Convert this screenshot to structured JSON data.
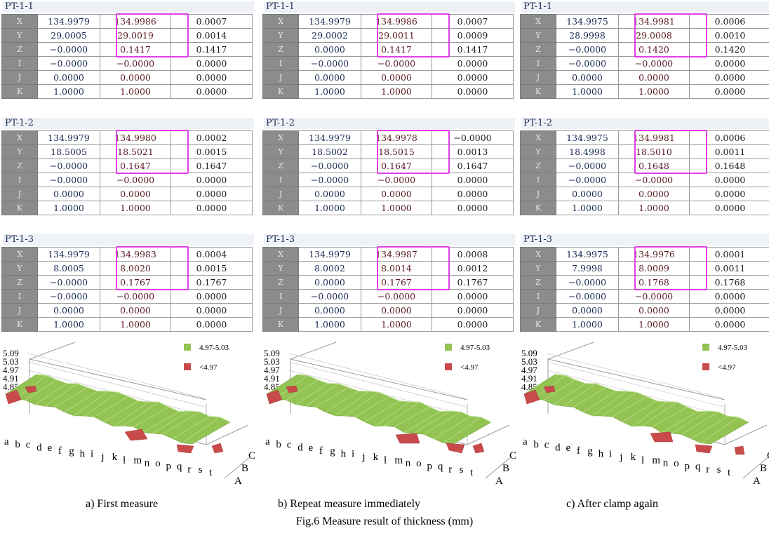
{
  "panels": [
    {
      "caption": "a) First measure",
      "blocks": [
        {
          "title": "PT-1-1",
          "rows": [
            {
              "axis": "X",
              "nominal": "134.9979",
              "measured": "134.9986",
              "deviation": "0.0007"
            },
            {
              "axis": "Y",
              "nominal": "29.0005",
              "measured": "29.0019",
              "deviation": "0.0014"
            },
            {
              "axis": "Z",
              "nominal": "−0.0000",
              "measured": "0.1417",
              "deviation": "0.1417"
            },
            {
              "axis": "I",
              "nominal": "−0.0000",
              "measured": "−0.0000",
              "deviation": "0.0000"
            },
            {
              "axis": "J",
              "nominal": "0.0000",
              "measured": "0.0000",
              "deviation": "0.0000"
            },
            {
              "axis": "K",
              "nominal": "1.0000",
              "measured": "1.0000",
              "deviation": "0.0000"
            }
          ]
        },
        {
          "title": "PT-1-2",
          "rows": [
            {
              "axis": "X",
              "nominal": "134.9979",
              "measured": "134.9980",
              "deviation": "0.0002"
            },
            {
              "axis": "Y",
              "nominal": "18.5005",
              "measured": "18.5021",
              "deviation": "0.0015"
            },
            {
              "axis": "Z",
              "nominal": "−0.0000",
              "measured": "0.1647",
              "deviation": "0.1647"
            },
            {
              "axis": "I",
              "nominal": "−0.0000",
              "measured": "−0.0000",
              "deviation": "0.0000"
            },
            {
              "axis": "J",
              "nominal": "0.0000",
              "measured": "0.0000",
              "deviation": "0.0000"
            },
            {
              "axis": "K",
              "nominal": "1.0000",
              "measured": "1.0000",
              "deviation": "0.0000"
            }
          ]
        },
        {
          "title": "PT-1-3",
          "rows": [
            {
              "axis": "X",
              "nominal": "134.9979",
              "measured": "134.9983",
              "deviation": "0.0004"
            },
            {
              "axis": "Y",
              "nominal": "8.0005",
              "measured": "8.0020",
              "deviation": "0.0015"
            },
            {
              "axis": "Z",
              "nominal": "−0.0000",
              "measured": "0.1767",
              "deviation": "0.1767"
            },
            {
              "axis": "I",
              "nominal": "−0.0000",
              "measured": "−0.0000",
              "deviation": "0.0000"
            },
            {
              "axis": "J",
              "nominal": "0.0000",
              "measured": "0.0000",
              "deviation": "0.0000"
            },
            {
              "axis": "K",
              "nominal": "1.0000",
              "measured": "1.0000",
              "deviation": "0.0000"
            }
          ]
        }
      ]
    },
    {
      "caption": "b) Repeat measure immediately",
      "blocks": [
        {
          "title": "PT-1-1",
          "rows": [
            {
              "axis": "X",
              "nominal": "134.9979",
              "measured": "134.9986",
              "deviation": "0.0007"
            },
            {
              "axis": "Y",
              "nominal": "29.0002",
              "measured": "29.0011",
              "deviation": "0.0009"
            },
            {
              "axis": "Z",
              "nominal": "0.0000",
              "measured": "0.1417",
              "deviation": "0.1417"
            },
            {
              "axis": "I",
              "nominal": "−0.0000",
              "measured": "−0.0000",
              "deviation": "0.0000"
            },
            {
              "axis": "J",
              "nominal": "0.0000",
              "measured": "0.0000",
              "deviation": "0.0000"
            },
            {
              "axis": "K",
              "nominal": "1.0000",
              "measured": "1.0000",
              "deviation": "0.0000"
            }
          ]
        },
        {
          "title": "PT-1-2",
          "rows": [
            {
              "axis": "X",
              "nominal": "134.9979",
              "measured": "134.9978",
              "deviation": "−0.0000"
            },
            {
              "axis": "Y",
              "nominal": "18.5002",
              "measured": "18.5015",
              "deviation": "0.0013"
            },
            {
              "axis": "Z",
              "nominal": "−0.0000",
              "measured": "0.1647",
              "deviation": "0.1647"
            },
            {
              "axis": "I",
              "nominal": "−0.0000",
              "measured": "−0.0000",
              "deviation": "0.0000"
            },
            {
              "axis": "J",
              "nominal": "0.0000",
              "measured": "0.0000",
              "deviation": "0.0000"
            },
            {
              "axis": "K",
              "nominal": "1.0000",
              "measured": "1.0000",
              "deviation": "0.0000"
            }
          ]
        },
        {
          "title": "PT-1-3",
          "rows": [
            {
              "axis": "X",
              "nominal": "134.9979",
              "measured": "134.9987",
              "deviation": "0.0008"
            },
            {
              "axis": "Y",
              "nominal": "8.0002",
              "measured": "8.0014",
              "deviation": "0.0012"
            },
            {
              "axis": "Z",
              "nominal": "0.0000",
              "measured": "0.1767",
              "deviation": "0.1767"
            },
            {
              "axis": "I",
              "nominal": "−0.0000",
              "measured": "−0.0000",
              "deviation": "0.0000"
            },
            {
              "axis": "J",
              "nominal": "0.0000",
              "measured": "0.0000",
              "deviation": "0.0000"
            },
            {
              "axis": "K",
              "nominal": "1.0000",
              "measured": "1.0000",
              "deviation": "0.0000"
            }
          ]
        }
      ]
    },
    {
      "caption": "c) After clamp again",
      "blocks": [
        {
          "title": "PT-1-1",
          "rows": [
            {
              "axis": "X",
              "nominal": "134.9975",
              "measured": "134.9981",
              "deviation": "0.0006"
            },
            {
              "axis": "Y",
              "nominal": "28.9998",
              "measured": "29.0008",
              "deviation": "0.0010"
            },
            {
              "axis": "Z",
              "nominal": "−0.0000",
              "measured": "0.1420",
              "deviation": "0.1420"
            },
            {
              "axis": "I",
              "nominal": "−0.0000",
              "measured": "−0.0000",
              "deviation": "0.0000"
            },
            {
              "axis": "J",
              "nominal": "0.0000",
              "measured": "0.0000",
              "deviation": "0.0000"
            },
            {
              "axis": "K",
              "nominal": "1.0000",
              "measured": "1.0000",
              "deviation": "0.0000"
            }
          ]
        },
        {
          "title": "PT-1-2",
          "rows": [
            {
              "axis": "X",
              "nominal": "134.9975",
              "measured": "134.9981",
              "deviation": "0.0006"
            },
            {
              "axis": "Y",
              "nominal": "18.4998",
              "measured": "18.5010",
              "deviation": "0.0011"
            },
            {
              "axis": "Z",
              "nominal": "−0.0000",
              "measured": "0.1648",
              "deviation": "0.1648"
            },
            {
              "axis": "I",
              "nominal": "−0.0000",
              "measured": "−0.0000",
              "deviation": "0.0000"
            },
            {
              "axis": "J",
              "nominal": "0.0000",
              "measured": "0.0000",
              "deviation": "0.0000"
            },
            {
              "axis": "K",
              "nominal": "1.0000",
              "measured": "1.0000",
              "deviation": "0.0000"
            }
          ]
        },
        {
          "title": "PT-1-3",
          "rows": [
            {
              "axis": "X",
              "nominal": "134.9975",
              "measured": "134.9976",
              "deviation": "0.0001"
            },
            {
              "axis": "Y",
              "nominal": "7.9998",
              "measured": "8.0009",
              "deviation": "0.0011"
            },
            {
              "axis": "Z",
              "nominal": "−0.0000",
              "measured": "0.1768",
              "deviation": "0.1768"
            },
            {
              "axis": "I",
              "nominal": "−0.0000",
              "measured": "−0.0000",
              "deviation": "0.0000"
            },
            {
              "axis": "J",
              "nominal": "0.0000",
              "measured": "0.0000",
              "deviation": "0.0000"
            },
            {
              "axis": "K",
              "nominal": "1.0000",
              "measured": "1.0000",
              "deviation": "0.0000"
            }
          ]
        }
      ]
    }
  ],
  "chart_data": {
    "type": "surface",
    "zlim": [
      4.85,
      5.09
    ],
    "z_ticks": [
      "5.09",
      "5.03",
      "4.97",
      "4.91",
      "4.85"
    ],
    "x_categories": [
      "a",
      "b",
      "c",
      "d",
      "e",
      "f",
      "g",
      "h",
      "i",
      "j",
      "k",
      "l",
      "m",
      "n",
      "o",
      "p",
      "q",
      "r",
      "s",
      "t"
    ],
    "y_categories": [
      "A",
      "B",
      "C"
    ],
    "legend": [
      {
        "label": "4.97-5.03",
        "color": "#92c353"
      },
      {
        "label": "<4.97",
        "color": "#c94a4a"
      }
    ],
    "legend_position": "top-right"
  },
  "figure_caption": "Fig.6 Measure result of thickness (mm)"
}
